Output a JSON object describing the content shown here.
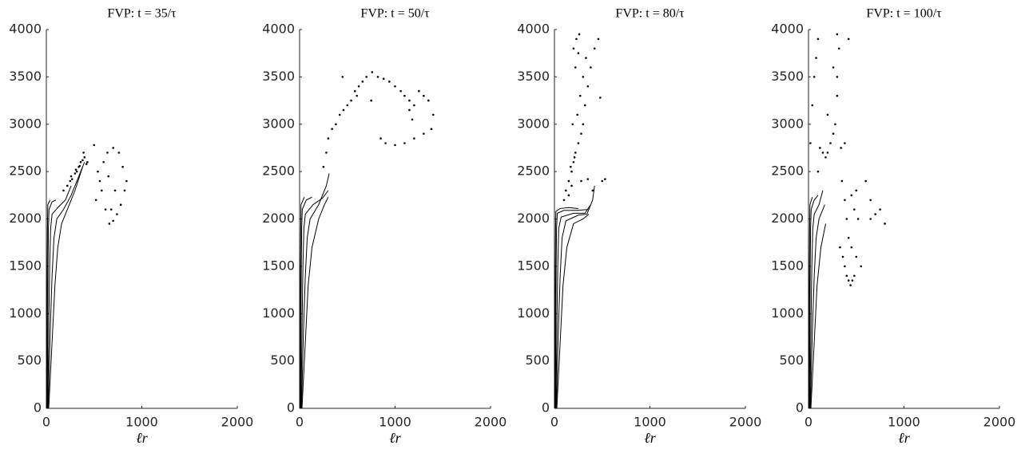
{
  "chart_data": [
    {
      "type": "scatter",
      "title": "FVP: t = 35/τ",
      "xlabel": "ℓr",
      "xlim": [
        0,
        2000
      ],
      "xticks": [
        0,
        1000,
        2000
      ],
      "ylim": [
        0,
        4000
      ],
      "yticks": [
        0,
        500,
        1000,
        1500,
        2000,
        2500,
        3000,
        3500,
        4000
      ],
      "series": [
        {
          "mode": "line",
          "color": "#000000",
          "x": [
            5,
            7,
            9,
            12,
            15,
            40
          ],
          "y": [
            0,
            800,
            1500,
            1900,
            2150,
            2200
          ]
        },
        {
          "mode": "line",
          "color": "#000000",
          "x": [
            10,
            14,
            18,
            22,
            28,
            60,
            100
          ],
          "y": [
            0,
            800,
            1500,
            1900,
            2100,
            2180,
            2200
          ]
        },
        {
          "mode": "line",
          "color": "#000000",
          "x": [
            15,
            25,
            35,
            45,
            60,
            120,
            200,
            260
          ],
          "y": [
            0,
            800,
            1500,
            1900,
            2050,
            2120,
            2200,
            2350
          ]
        },
        {
          "mode": "line",
          "color": "#000000",
          "x": [
            20,
            40,
            60,
            80,
            110,
            180,
            260,
            340,
            400
          ],
          "y": [
            0,
            800,
            1400,
            1800,
            2000,
            2100,
            2250,
            2450,
            2600
          ]
        },
        {
          "mode": "line",
          "color": "#000000",
          "x": [
            25,
            60,
            90,
            120,
            160,
            220,
            300,
            380
          ],
          "y": [
            0,
            700,
            1300,
            1700,
            1950,
            2100,
            2300,
            2550
          ]
        },
        {
          "mode": "markers",
          "color": "#000000",
          "x": [
            180,
            220,
            250,
            270,
            300,
            320,
            340,
            360,
            380,
            400,
            420,
            430,
            260,
            310,
            350,
            390,
            500,
            540,
            580,
            620,
            660,
            700,
            740,
            780,
            820,
            840,
            800,
            760,
            700,
            640,
            600,
            560,
            520,
            680,
            720,
            650
          ],
          "y": [
            2300,
            2350,
            2400,
            2420,
            2480,
            2500,
            2550,
            2600,
            2620,
            2650,
            2580,
            2600,
            2450,
            2520,
            2560,
            2700,
            2780,
            2500,
            2300,
            2100,
            1950,
            1980,
            2050,
            2150,
            2300,
            2400,
            2550,
            2700,
            2750,
            2700,
            2600,
            2400,
            2200,
            2100,
            2300,
            2450
          ]
        }
      ]
    },
    {
      "type": "scatter",
      "title": "FVP: t = 50/τ",
      "xlabel": "ℓr",
      "xlim": [
        0,
        2000
      ],
      "xticks": [
        0,
        1000,
        2000
      ],
      "ylim": [
        0,
        4000
      ],
      "yticks": [
        0,
        500,
        1000,
        1500,
        2000,
        2500,
        3000,
        3500,
        4000
      ],
      "series": [
        {
          "mode": "line",
          "color": "#000000",
          "x": [
            5,
            7,
            9,
            12,
            15,
            50
          ],
          "y": [
            0,
            800,
            1500,
            1900,
            2150,
            2230
          ]
        },
        {
          "mode": "line",
          "color": "#000000",
          "x": [
            10,
            14,
            18,
            22,
            28,
            70,
            130
          ],
          "y": [
            0,
            800,
            1500,
            1900,
            2100,
            2200,
            2230
          ]
        },
        {
          "mode": "line",
          "color": "#000000",
          "x": [
            15,
            25,
            35,
            45,
            60,
            140,
            240,
            300
          ],
          "y": [
            0,
            800,
            1500,
            1900,
            2050,
            2150,
            2220,
            2300
          ]
        },
        {
          "mode": "line",
          "color": "#000000",
          "x": [
            20,
            40,
            60,
            80,
            110,
            200,
            280,
            310
          ],
          "y": [
            0,
            800,
            1400,
            1800,
            2000,
            2150,
            2350,
            2480
          ]
        },
        {
          "mode": "line",
          "color": "#000000",
          "x": [
            25,
            60,
            90,
            130,
            200,
            260,
            300
          ],
          "y": [
            0,
            700,
            1300,
            1700,
            2000,
            2150,
            2230
          ]
        },
        {
          "mode": "markers",
          "color": "#000000",
          "x": [
            250,
            280,
            300,
            340,
            380,
            420,
            460,
            500,
            540,
            580,
            620,
            660,
            700,
            760,
            820,
            880,
            940,
            1000,
            1060,
            1100,
            1150,
            1200,
            1250,
            1300,
            1350,
            1400,
            1380,
            1300,
            1200,
            1100,
            1000,
            900,
            850,
            450,
            600,
            750,
            1150,
            1180
          ],
          "y": [
            2550,
            2700,
            2850,
            2950,
            3000,
            3100,
            3150,
            3200,
            3250,
            3350,
            3400,
            3450,
            3500,
            3550,
            3500,
            3480,
            3450,
            3400,
            3350,
            3300,
            3250,
            3200,
            3350,
            3300,
            3250,
            3100,
            2950,
            2900,
            2850,
            2800,
            2780,
            2800,
            2850,
            3500,
            3300,
            3250,
            3150,
            3050
          ]
        }
      ]
    },
    {
      "type": "scatter",
      "title": "FVP: t = 80/τ",
      "xlabel": "ℓr",
      "xlim": [
        0,
        2000
      ],
      "xticks": [
        0,
        1000,
        2000
      ],
      "ylim": [
        0,
        4000
      ],
      "yticks": [
        0,
        500,
        1000,
        1500,
        2000,
        2500,
        3000,
        3500,
        4000
      ],
      "series": [
        {
          "mode": "line",
          "color": "#000000",
          "x": [
            5,
            7,
            9,
            12,
            15,
            60,
            150,
            250
          ],
          "y": [
            0,
            800,
            1500,
            1900,
            2080,
            2110,
            2120,
            2110
          ]
        },
        {
          "mode": "line",
          "color": "#000000",
          "x": [
            10,
            14,
            18,
            22,
            30,
            100,
            250,
            350
          ],
          "y": [
            0,
            800,
            1500,
            1900,
            2060,
            2090,
            2090,
            2100
          ]
        },
        {
          "mode": "line",
          "color": "#000000",
          "x": [
            15,
            25,
            35,
            45,
            70,
            200,
            320,
            380
          ],
          "y": [
            0,
            800,
            1500,
            1900,
            2020,
            2060,
            2060,
            2150
          ]
        },
        {
          "mode": "line",
          "color": "#000000",
          "x": [
            20,
            40,
            60,
            80,
            120,
            250,
            340,
            400,
            420
          ],
          "y": [
            0,
            800,
            1400,
            1800,
            1980,
            2040,
            2050,
            2200,
            2350
          ]
        },
        {
          "mode": "line",
          "color": "#000000",
          "x": [
            25,
            60,
            90,
            130,
            200,
            300,
            360
          ],
          "y": [
            0,
            700,
            1300,
            1700,
            1950,
            2000,
            2050
          ]
        },
        {
          "mode": "markers",
          "color": "#000000",
          "x": [
            100,
            120,
            150,
            180,
            200,
            220,
            250,
            280,
            300,
            320,
            350,
            380,
            420,
            460,
            500,
            530,
            200,
            230,
            260,
            150,
            180,
            210,
            240,
            270,
            300,
            330,
            170,
            190,
            220,
            250,
            280,
            480,
            400,
            350
          ],
          "y": [
            2200,
            2300,
            2400,
            2500,
            2600,
            2700,
            2800,
            2900,
            3000,
            3200,
            3400,
            3600,
            3800,
            3900,
            2400,
            2420,
            3800,
            3900,
            3950,
            2250,
            2350,
            2650,
            3100,
            3300,
            3500,
            3700,
            2550,
            3000,
            3600,
            3750,
            2400,
            3280,
            2300,
            2420
          ]
        }
      ]
    },
    {
      "type": "scatter",
      "title": "FVP: t = 100/τ",
      "xlabel": "ℓr",
      "xlim": [
        0,
        2000
      ],
      "xticks": [
        0,
        1000,
        2000
      ],
      "ylim": [
        0,
        4000
      ],
      "yticks": [
        0,
        500,
        1000,
        1500,
        2000,
        2500,
        3000,
        3500,
        4000
      ],
      "series": [
        {
          "mode": "line",
          "color": "#000000",
          "x": [
            5,
            7,
            9,
            12,
            15,
            40
          ],
          "y": [
            0,
            800,
            1500,
            1900,
            2150,
            2230
          ]
        },
        {
          "mode": "line",
          "color": "#000000",
          "x": [
            10,
            14,
            18,
            22,
            28,
            60,
            100
          ],
          "y": [
            0,
            800,
            1500,
            1900,
            2100,
            2200,
            2250
          ]
        },
        {
          "mode": "line",
          "color": "#000000",
          "x": [
            15,
            25,
            35,
            45,
            60,
            110,
            150
          ],
          "y": [
            0,
            800,
            1500,
            1900,
            2050,
            2150,
            2300
          ]
        },
        {
          "mode": "line",
          "color": "#000000",
          "x": [
            20,
            40,
            60,
            80,
            110,
            170
          ],
          "y": [
            0,
            800,
            1400,
            1800,
            2000,
            2150
          ]
        },
        {
          "mode": "line",
          "color": "#000000",
          "x": [
            25,
            60,
            90,
            130,
            180
          ],
          "y": [
            0,
            700,
            1300,
            1700,
            1950
          ]
        },
        {
          "mode": "markers",
          "color": "#000000",
          "x": [
            20,
            40,
            60,
            80,
            100,
            120,
            150,
            180,
            200,
            230,
            260,
            300,
            340,
            380,
            420,
            260,
            280,
            300,
            320,
            350,
            380,
            400,
            420,
            450,
            500,
            550,
            600,
            650,
            700,
            750,
            800,
            480,
            460,
            440,
            420,
            400,
            380,
            360,
            330,
            450,
            500,
            480,
            520,
            300,
            200,
            100,
            650
          ],
          "y": [
            2800,
            3200,
            3500,
            3700,
            3900,
            2750,
            2700,
            2650,
            2700,
            2800,
            3600,
            3950,
            2750,
            2800,
            3900,
            2900,
            3000,
            3500,
            3800,
            2400,
            2200,
            2000,
            1800,
            1700,
            1600,
            1500,
            2400,
            2200,
            2050,
            2100,
            1950,
            1400,
            1350,
            1300,
            1350,
            1400,
            1500,
            1600,
            1700,
            2250,
            2300,
            2100,
            2000,
            3300,
            3100,
            2500,
            2000
          ]
        }
      ]
    }
  ]
}
